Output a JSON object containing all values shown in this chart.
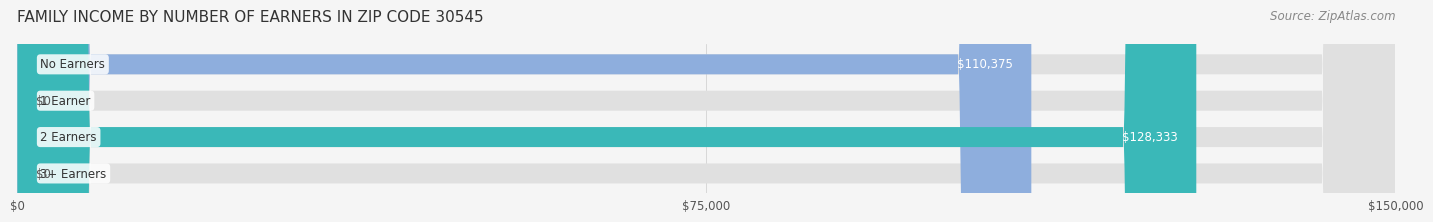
{
  "title": "FAMILY INCOME BY NUMBER OF EARNERS IN ZIP CODE 30545",
  "source": "Source: ZipAtlas.com",
  "categories": [
    "No Earners",
    "1 Earner",
    "2 Earners",
    "3+ Earners"
  ],
  "values": [
    110375,
    0,
    128333,
    0
  ],
  "max_value": 150000,
  "bar_colors": [
    "#8eaedd",
    "#c9a8d4",
    "#3ab8b8",
    "#a8b8e8"
  ],
  "bar_colors_light": [
    "#c5d8f0",
    "#e8d8f0",
    "#8adada",
    "#c8d4f4"
  ],
  "label_colors": [
    "#ffffff",
    "#555555",
    "#ffffff",
    "#555555"
  ],
  "value_labels": [
    "$110,375",
    "$0",
    "$128,333",
    "$0"
  ],
  "x_ticks": [
    0,
    75000,
    150000
  ],
  "x_tick_labels": [
    "$0",
    "$75,000",
    "$150,000"
  ],
  "background_color": "#f5f5f5",
  "bar_bg_color": "#e8e8e8",
  "title_fontsize": 11,
  "source_fontsize": 8.5,
  "label_fontsize": 8.5,
  "value_fontsize": 8.5,
  "tick_fontsize": 8.5,
  "bar_height": 0.55,
  "figsize": [
    14.06,
    2.33
  ]
}
